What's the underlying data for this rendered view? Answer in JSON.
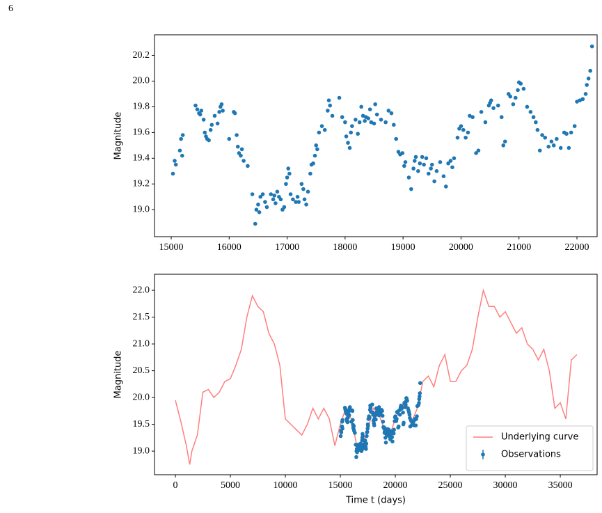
{
  "page_number": "6",
  "chart_data": [
    {
      "type": "scatter",
      "ylabel": "Magnitude",
      "color": "#1f77b4",
      "xlim": [
        14712,
        22348
      ],
      "xticks": [
        15000,
        16000,
        17000,
        18000,
        19000,
        20000,
        21000,
        22000
      ],
      "ylim": [
        18.79,
        20.36
      ],
      "yticks": [
        {
          "value": 19,
          "label": "19.0"
        },
        19.2,
        19.4,
        19.6,
        19.8,
        {
          "value": 20,
          "label": "20.0"
        },
        20.2
      ],
      "x": [
        15030,
        15060,
        15080,
        15150,
        15170,
        15200,
        15190,
        15420,
        15450,
        15480,
        15500,
        15520,
        15560,
        15580,
        15600,
        15620,
        15650,
        15680,
        15700,
        15750,
        15800,
        15830,
        15850,
        15870,
        15890,
        16000,
        16080,
        16100,
        16130,
        16150,
        16170,
        16200,
        16220,
        16250,
        16320,
        16400,
        16450,
        16470,
        16500,
        16520,
        16540,
        16580,
        16620,
        16650,
        16720,
        16760,
        16780,
        16800,
        16830,
        16860,
        16890,
        16920,
        16950,
        16980,
        17000,
        17020,
        17040,
        17060,
        17100,
        17150,
        17180,
        17200,
        17250,
        17280,
        17300,
        17330,
        17360,
        17400,
        17420,
        17450,
        17480,
        17500,
        17520,
        17550,
        17600,
        17650,
        17700,
        17720,
        17740,
        17780,
        17900,
        17950,
        18000,
        18020,
        18050,
        18080,
        18100,
        18120,
        18180,
        18220,
        18250,
        18280,
        18310,
        18340,
        18360,
        18400,
        18430,
        18450,
        18500,
        18520,
        18550,
        18620,
        18700,
        18750,
        18800,
        18840,
        18880,
        18920,
        18950,
        18990,
        19020,
        19040,
        19100,
        19140,
        19180,
        19200,
        19220,
        19260,
        19290,
        19330,
        19360,
        19400,
        19440,
        19480,
        19500,
        19540,
        19580,
        19640,
        19700,
        19740,
        19780,
        19820,
        19850,
        19880,
        19940,
        19970,
        20000,
        20040,
        20080,
        20120,
        20150,
        20200,
        20260,
        20300,
        20350,
        20420,
        20480,
        20500,
        20520,
        20560,
        20640,
        20700,
        20730,
        20760,
        20820,
        20850,
        20900,
        20940,
        20980,
        21000,
        21030,
        21080,
        21140,
        21200,
        21250,
        21290,
        21320,
        21360,
        21400,
        21450,
        21510,
        21560,
        21600,
        21650,
        21720,
        21780,
        21820,
        21860,
        21900,
        21960,
        22000,
        22050,
        22100,
        22150,
        22170,
        22200,
        22230,
        22260
      ],
      "values": [
        19.28,
        19.38,
        19.35,
        19.46,
        19.55,
        19.58,
        19.42,
        19.81,
        19.78,
        19.75,
        19.74,
        19.77,
        19.7,
        19.6,
        19.57,
        19.55,
        19.54,
        19.62,
        19.66,
        19.73,
        19.67,
        19.76,
        19.8,
        19.82,
        19.77,
        19.55,
        19.76,
        19.75,
        19.58,
        19.49,
        19.44,
        19.42,
        19.47,
        19.38,
        19.34,
        19.12,
        18.89,
        19.0,
        19.04,
        18.98,
        19.1,
        19.12,
        19.06,
        19.02,
        19.12,
        19.08,
        19.11,
        19.05,
        19.14,
        19.1,
        19.08,
        19.0,
        19.02,
        19.2,
        19.25,
        19.32,
        19.28,
        19.12,
        19.08,
        19.06,
        19.1,
        19.06,
        19.2,
        19.16,
        19.08,
        19.04,
        19.14,
        19.28,
        19.35,
        19.36,
        19.42,
        19.5,
        19.47,
        19.6,
        19.65,
        19.62,
        19.77,
        19.85,
        19.81,
        19.73,
        19.87,
        19.72,
        19.68,
        19.57,
        19.52,
        19.48,
        19.6,
        19.65,
        19.7,
        19.59,
        19.68,
        19.8,
        19.73,
        19.69,
        19.72,
        19.71,
        19.78,
        19.68,
        19.67,
        19.82,
        19.74,
        19.7,
        19.68,
        19.77,
        19.75,
        19.66,
        19.55,
        19.45,
        19.43,
        19.44,
        19.34,
        19.37,
        19.25,
        19.16,
        19.32,
        19.38,
        19.41,
        19.3,
        19.36,
        19.41,
        19.35,
        19.4,
        19.28,
        19.32,
        19.35,
        19.22,
        19.3,
        19.37,
        19.26,
        19.18,
        19.36,
        19.38,
        19.33,
        19.4,
        19.56,
        19.63,
        19.65,
        19.62,
        19.56,
        19.6,
        19.73,
        19.72,
        19.44,
        19.46,
        19.76,
        19.68,
        19.81,
        19.83,
        19.85,
        19.79,
        19.81,
        19.72,
        19.5,
        19.53,
        19.9,
        19.88,
        19.82,
        19.87,
        19.93,
        19.99,
        19.98,
        19.94,
        19.8,
        19.76,
        19.72,
        19.68,
        19.62,
        19.46,
        19.58,
        19.56,
        19.49,
        19.53,
        19.5,
        19.55,
        19.48,
        19.6,
        19.59,
        19.48,
        19.6,
        19.65,
        19.84,
        19.85,
        19.86,
        19.9,
        19.97,
        20.02,
        20.08,
        20.27
      ]
    },
    {
      "type": "line",
      "ylabel": "Magnitude",
      "xlabel": "Time t (days)",
      "legend": "lower right",
      "xlim": [
        -1900,
        38350
      ],
      "xticks": [
        0,
        5000,
        10000,
        15000,
        20000,
        25000,
        30000,
        35000
      ],
      "ylim": [
        18.56,
        22.3
      ],
      "yticks": [
        {
          "value": 19,
          "label": "19.0"
        },
        19.5,
        {
          "value": 20,
          "label": "20.0"
        },
        20.5,
        {
          "value": 21,
          "label": "21.0"
        },
        21.5,
        {
          "value": 22,
          "label": "22.0"
        }
      ],
      "series": [
        {
          "name": "Underlying curve",
          "color": "#ff7f7f",
          "style": "line",
          "x": [
            0,
            500,
            1000,
            1300,
            1500,
            2000,
            2500,
            3000,
            3500,
            4000,
            4500,
            5000,
            5500,
            6000,
            6500,
            7000,
            7500,
            8000,
            8500,
            9000,
            9500,
            10000,
            10500,
            11000,
            11500,
            12000,
            12500,
            13000,
            13500,
            14000,
            14500,
            15000,
            15500,
            16000,
            16500,
            17000,
            17500,
            18000,
            18500,
            19000,
            19500,
            20000,
            20500,
            21000,
            21500,
            22000,
            22500,
            23000,
            23500,
            24000,
            24500,
            25000,
            25500,
            26000,
            26500,
            27000,
            27500,
            28000,
            28500,
            29000,
            29500,
            30000,
            30500,
            31000,
            31500,
            32000,
            32500,
            33000,
            33500,
            34000,
            34500,
            35000,
            35500,
            36000,
            36500
          ],
          "values": [
            19.95,
            19.55,
            19.1,
            18.75,
            19.0,
            19.3,
            20.1,
            20.15,
            20.0,
            20.1,
            20.3,
            20.35,
            20.6,
            20.9,
            21.5,
            21.9,
            21.7,
            21.6,
            21.2,
            21.0,
            20.6,
            19.6,
            19.5,
            19.4,
            19.3,
            19.5,
            19.8,
            19.6,
            19.8,
            19.6,
            19.1,
            19.5,
            19.8,
            19.6,
            19.1,
            19.1,
            19.4,
            19.8,
            19.7,
            19.4,
            19.3,
            19.6,
            19.8,
            19.9,
            19.55,
            19.8,
            20.3,
            20.4,
            20.2,
            20.6,
            20.8,
            20.3,
            20.3,
            20.5,
            20.6,
            20.9,
            21.5,
            22.0,
            21.7,
            21.7,
            21.5,
            21.6,
            21.4,
            21.2,
            21.3,
            21.0,
            20.9,
            20.7,
            20.9,
            20.5,
            19.8,
            19.9,
            19.6,
            20.7,
            20.8
          ]
        },
        {
          "name": "Observations",
          "color": "#1f77b4",
          "style": "points",
          "x": [
            15030,
            15060,
            15080,
            15150,
            15170,
            15200,
            15190,
            15420,
            15450,
            15480,
            15500,
            15520,
            15560,
            15580,
            15600,
            15620,
            15650,
            15680,
            15700,
            15750,
            15800,
            15830,
            15850,
            15870,
            15890,
            16000,
            16080,
            16100,
            16130,
            16150,
            16170,
            16200,
            16220,
            16250,
            16320,
            16400,
            16450,
            16470,
            16500,
            16520,
            16540,
            16580,
            16620,
            16650,
            16720,
            16760,
            16780,
            16800,
            16830,
            16860,
            16890,
            16920,
            16950,
            16980,
            17000,
            17020,
            17040,
            17060,
            17100,
            17150,
            17180,
            17200,
            17250,
            17280,
            17300,
            17330,
            17360,
            17400,
            17420,
            17450,
            17480,
            17500,
            17520,
            17550,
            17600,
            17650,
            17700,
            17720,
            17740,
            17780,
            17900,
            17950,
            18000,
            18020,
            18050,
            18080,
            18100,
            18120,
            18180,
            18220,
            18250,
            18280,
            18310,
            18340,
            18360,
            18400,
            18430,
            18450,
            18500,
            18520,
            18550,
            18620,
            18700,
            18750,
            18800,
            18840,
            18880,
            18920,
            18950,
            18990,
            19020,
            19040,
            19100,
            19140,
            19180,
            19200,
            19220,
            19260,
            19290,
            19330,
            19360,
            19400,
            19440,
            19480,
            19500,
            19540,
            19580,
            19640,
            19700,
            19740,
            19780,
            19820,
            19850,
            19880,
            19940,
            19970,
            20000,
            20040,
            20080,
            20120,
            20150,
            20200,
            20260,
            20300,
            20350,
            20420,
            20480,
            20500,
            20520,
            20560,
            20640,
            20700,
            20730,
            20760,
            20820,
            20850,
            20900,
            20940,
            20980,
            21000,
            21030,
            21080,
            21140,
            21200,
            21250,
            21290,
            21320,
            21360,
            21400,
            21450,
            21510,
            21560,
            21600,
            21650,
            21720,
            21780,
            21820,
            21860,
            21900,
            21960,
            22000,
            22050,
            22100,
            22150,
            22170,
            22200,
            22230,
            22260
          ],
          "values": [
            19.28,
            19.38,
            19.35,
            19.46,
            19.55,
            19.58,
            19.42,
            19.81,
            19.78,
            19.75,
            19.74,
            19.77,
            19.7,
            19.6,
            19.57,
            19.55,
            19.54,
            19.62,
            19.66,
            19.73,
            19.67,
            19.76,
            19.8,
            19.82,
            19.77,
            19.55,
            19.76,
            19.75,
            19.58,
            19.49,
            19.44,
            19.42,
            19.47,
            19.38,
            19.34,
            19.12,
            18.89,
            19.0,
            19.04,
            18.98,
            19.1,
            19.12,
            19.06,
            19.02,
            19.12,
            19.08,
            19.11,
            19.05,
            19.14,
            19.1,
            19.08,
            19.0,
            19.02,
            19.2,
            19.25,
            19.32,
            19.28,
            19.12,
            19.08,
            19.06,
            19.1,
            19.06,
            19.2,
            19.16,
            19.08,
            19.04,
            19.14,
            19.28,
            19.35,
            19.36,
            19.42,
            19.5,
            19.47,
            19.6,
            19.65,
            19.62,
            19.77,
            19.85,
            19.81,
            19.73,
            19.87,
            19.72,
            19.68,
            19.57,
            19.52,
            19.48,
            19.6,
            19.65,
            19.7,
            19.59,
            19.68,
            19.8,
            19.73,
            19.69,
            19.72,
            19.71,
            19.78,
            19.68,
            19.67,
            19.82,
            19.74,
            19.7,
            19.68,
            19.77,
            19.75,
            19.66,
            19.55,
            19.45,
            19.43,
            19.44,
            19.34,
            19.37,
            19.25,
            19.16,
            19.32,
            19.38,
            19.41,
            19.3,
            19.36,
            19.41,
            19.35,
            19.4,
            19.28,
            19.32,
            19.35,
            19.22,
            19.3,
            19.37,
            19.26,
            19.18,
            19.36,
            19.38,
            19.33,
            19.4,
            19.56,
            19.63,
            19.65,
            19.62,
            19.56,
            19.6,
            19.73,
            19.72,
            19.44,
            19.46,
            19.76,
            19.68,
            19.81,
            19.83,
            19.85,
            19.79,
            19.81,
            19.72,
            19.5,
            19.53,
            19.9,
            19.88,
            19.82,
            19.87,
            19.93,
            19.99,
            19.98,
            19.94,
            19.8,
            19.76,
            19.72,
            19.68,
            19.62,
            19.46,
            19.58,
            19.56,
            19.49,
            19.53,
            19.5,
            19.55,
            19.48,
            19.6,
            19.59,
            19.48,
            19.6,
            19.65,
            19.84,
            19.85,
            19.86,
            19.9,
            19.97,
            20.02,
            20.08,
            20.27
          ]
        }
      ]
    }
  ]
}
